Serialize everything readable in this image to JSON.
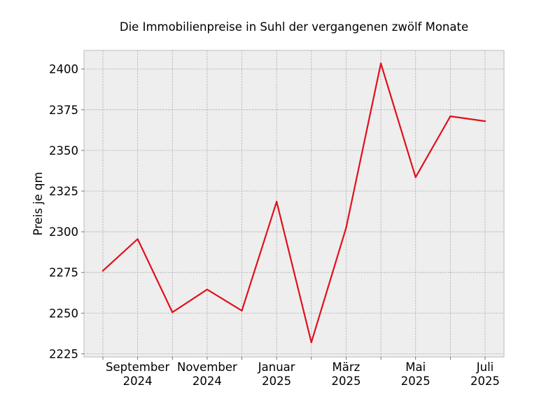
{
  "chart_data": {
    "type": "line",
    "title": "Die Immobilienpreise in Suhl der vergangenen zwölf Monate",
    "xlabel": "",
    "ylabel": "Preis je qm",
    "x": [
      "2024-08",
      "2024-09",
      "2024-10",
      "2024-11",
      "2024-12",
      "2025-01",
      "2025-02",
      "2025-03",
      "2025-04",
      "2025-05",
      "2025-06",
      "2025-07"
    ],
    "series": [
      {
        "values": [
          2276,
          2295.5,
          2250.5,
          2264.5,
          2251.5,
          2318.5,
          2232,
          2302.5,
          2403.5,
          2333.5,
          2371,
          2368
        ]
      }
    ],
    "ylim": [
      2223,
      2411.5
    ],
    "yticks": [
      2225,
      2250,
      2275,
      2300,
      2325,
      2350,
      2375,
      2400
    ],
    "xticks": [
      {
        "month": "September",
        "year": "2024",
        "index": 1
      },
      {
        "month": "November",
        "year": "2024",
        "index": 3
      },
      {
        "month": "Januar",
        "year": "2025",
        "index": 5
      },
      {
        "month": "März",
        "year": "2025",
        "index": 7
      },
      {
        "month": "Mai",
        "year": "2025",
        "index": 9
      },
      {
        "month": "Juli",
        "year": "2025",
        "index": 11
      }
    ],
    "grid": true,
    "colors": {
      "line": "#e0101c",
      "plot_bg": "#eeeeee",
      "axes_edge": "#bcbcbc"
    }
  }
}
